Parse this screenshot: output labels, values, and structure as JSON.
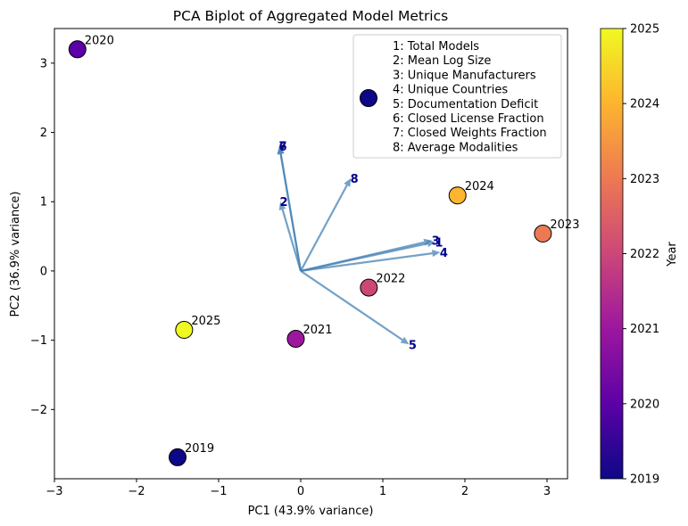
{
  "chart_data": {
    "type": "scatter",
    "title": "PCA Biplot of Aggregated Model Metrics",
    "xlabel": "PC1 (43.9% variance)",
    "ylabel": "PC2 (36.9% variance)",
    "xlim": [
      -3,
      3.25
    ],
    "ylim": [
      -3,
      3.5
    ],
    "xticks": [
      -3,
      -2,
      -1,
      0,
      1,
      2,
      3
    ],
    "yticks": [
      -2,
      -1,
      0,
      1,
      2,
      3
    ],
    "points": [
      {
        "label": "2019",
        "year": 2019,
        "x": -1.5,
        "y": -2.69
      },
      {
        "label": "2020",
        "year": 2020,
        "x": -2.72,
        "y": 3.2
      },
      {
        "label": "2021",
        "year": 2021,
        "x": -0.06,
        "y": -0.98
      },
      {
        "label": "2022",
        "year": 2022,
        "x": 0.83,
        "y": -0.24
      },
      {
        "label": "2023",
        "year": 2023,
        "x": 2.95,
        "y": 0.54
      },
      {
        "label": "2024",
        "year": 2024,
        "x": 1.91,
        "y": 1.09
      },
      {
        "label": "2025",
        "year": 2025,
        "x": -1.42,
        "y": -0.85
      }
    ],
    "loadings": [
      {
        "id": "1",
        "name": "Total Models",
        "x": 1.64,
        "y": 0.42
      },
      {
        "id": "2",
        "name": "Mean Log Size",
        "x": -0.25,
        "y": 1.0
      },
      {
        "id": "3",
        "name": "Unique Manufacturers",
        "x": 1.6,
        "y": 0.44
      },
      {
        "id": "4",
        "name": "Unique Countries",
        "x": 1.7,
        "y": 0.27
      },
      {
        "id": "5",
        "name": "Documentation Deficit",
        "x": 1.32,
        "y": -1.06
      },
      {
        "id": "6",
        "name": "Closed License Fraction",
        "x": -0.26,
        "y": 1.8
      },
      {
        "id": "7",
        "name": "Closed Weights Fraction",
        "x": -0.26,
        "y": 1.81
      },
      {
        "id": "8",
        "name": "Average Modalities",
        "x": 0.61,
        "y": 1.34
      }
    ],
    "legend": {
      "position": "top-right",
      "entries": [
        "1: Total Models",
        "2: Mean Log Size",
        "3: Unique Manufacturers",
        "4: Unique Countries",
        "5: Documentation Deficit",
        "6: Closed License Fraction",
        "7: Closed Weights Fraction",
        "8: Average Modalities"
      ]
    },
    "colorbar": {
      "label": "Year",
      "min": 2019,
      "max": 2025,
      "ticks": [
        2019,
        2020,
        2021,
        2022,
        2023,
        2024,
        2025
      ],
      "colormap": "plasma",
      "colors": [
        "#0d0887",
        "#5c01a6",
        "#9c179e",
        "#cc4778",
        "#ed7953",
        "#fdb42f",
        "#f0f921"
      ]
    },
    "arrow_color": "#4682b4",
    "label_color": "#00008b"
  }
}
